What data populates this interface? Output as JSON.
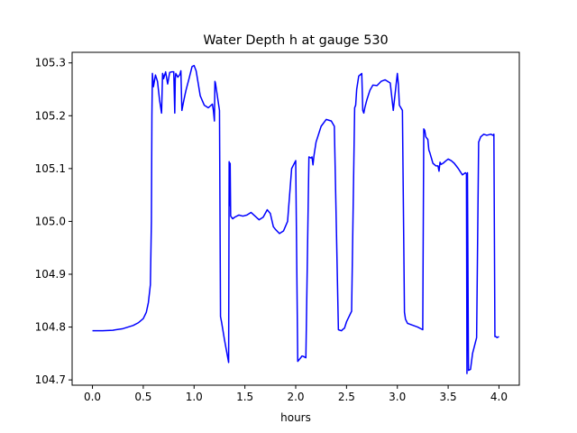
{
  "chart_data": {
    "type": "line",
    "title": "Water Depth h at gauge 530",
    "xlabel": "hours",
    "ylabel": "",
    "xlim": [
      -0.2,
      4.2
    ],
    "ylim": [
      104.69,
      105.32
    ],
    "xticks": [
      0.0,
      0.5,
      1.0,
      1.5,
      2.0,
      2.5,
      3.0,
      3.5,
      4.0
    ],
    "xtick_labels": [
      "0.0",
      "0.5",
      "1.0",
      "1.5",
      "2.0",
      "2.5",
      "3.0",
      "3.5",
      "4.0"
    ],
    "yticks": [
      104.7,
      104.8,
      104.9,
      105.0,
      105.1,
      105.2,
      105.3
    ],
    "ytick_labels": [
      "104.7",
      "104.8",
      "104.9",
      "105.0",
      "105.1",
      "105.2",
      "105.3"
    ],
    "grid": false,
    "series": [
      {
        "name": "",
        "color": "#0000ff",
        "x": [
          0.0,
          0.1,
          0.2,
          0.3,
          0.4,
          0.45,
          0.5,
          0.53,
          0.55,
          0.57,
          0.58,
          0.585,
          0.59,
          0.6,
          0.62,
          0.64,
          0.66,
          0.68,
          0.69,
          0.695,
          0.7,
          0.72,
          0.74,
          0.76,
          0.78,
          0.8,
          0.81,
          0.815,
          0.82,
          0.84,
          0.86,
          0.87,
          0.88,
          0.885,
          0.9,
          0.92,
          0.95,
          0.98,
          1.0,
          1.02,
          1.04,
          1.06,
          1.1,
          1.14,
          1.18,
          1.19,
          1.2,
          1.205,
          1.21,
          1.25,
          1.26,
          1.27,
          1.3,
          1.34,
          1.345,
          1.35,
          1.355,
          1.36,
          1.38,
          1.4,
          1.44,
          1.48,
          1.52,
          1.56,
          1.6,
          1.64,
          1.68,
          1.72,
          1.75,
          1.78,
          1.8,
          1.84,
          1.88,
          1.92,
          1.96,
          2.0,
          2.02,
          2.05,
          2.06,
          2.07,
          2.1,
          2.13,
          2.15,
          2.16,
          2.17,
          2.18,
          2.2,
          2.25,
          2.3,
          2.35,
          2.38,
          2.42,
          2.45,
          2.46,
          2.48,
          2.5,
          2.55,
          2.58,
          2.59,
          2.6,
          2.62,
          2.65,
          2.66,
          2.67,
          2.68,
          2.7,
          2.73,
          2.76,
          2.8,
          2.84,
          2.88,
          2.93,
          2.96,
          3.0,
          3.01,
          3.02,
          3.05,
          3.07,
          3.08,
          3.1,
          3.2,
          3.25,
          3.26,
          3.27,
          3.28,
          3.3,
          3.31,
          3.32,
          3.35,
          3.38,
          3.4,
          3.41,
          3.42,
          3.43,
          3.45,
          3.48,
          3.5,
          3.53,
          3.56,
          3.6,
          3.64,
          3.67,
          3.68,
          3.685,
          3.69,
          3.7,
          3.72,
          3.74,
          3.78,
          3.8,
          3.82,
          3.85,
          3.88,
          3.92,
          3.94,
          3.95,
          3.96,
          3.97,
          3.98,
          4.0
        ],
        "y": [
          104.793,
          104.793,
          104.794,
          104.797,
          104.803,
          104.808,
          104.816,
          104.828,
          104.846,
          104.88,
          105.0,
          105.2,
          105.28,
          105.255,
          105.277,
          105.265,
          105.23,
          105.205,
          105.28,
          105.277,
          105.27,
          105.283,
          105.26,
          105.282,
          105.283,
          105.283,
          105.205,
          105.27,
          105.28,
          105.273,
          105.278,
          105.285,
          105.21,
          105.215,
          105.23,
          105.248,
          105.27,
          105.293,
          105.295,
          105.285,
          105.262,
          105.238,
          105.22,
          105.215,
          105.222,
          105.21,
          105.19,
          105.265,
          105.262,
          105.21,
          104.82,
          104.81,
          104.775,
          104.733,
          105.113,
          105.03,
          105.11,
          105.01,
          105.005,
          105.008,
          105.012,
          105.01,
          105.012,
          105.017,
          105.01,
          105.003,
          105.008,
          105.022,
          105.015,
          104.99,
          104.985,
          104.977,
          104.982,
          105.0,
          105.1,
          105.115,
          104.735,
          104.742,
          104.745,
          104.745,
          104.742,
          105.122,
          105.12,
          105.122,
          105.107,
          105.125,
          105.15,
          105.18,
          105.193,
          105.19,
          105.18,
          104.795,
          104.793,
          104.795,
          104.798,
          104.81,
          104.83,
          105.215,
          105.22,
          105.25,
          105.275,
          105.28,
          105.21,
          105.205,
          105.215,
          105.23,
          105.248,
          105.258,
          105.257,
          105.265,
          105.268,
          105.262,
          105.21,
          105.28,
          105.26,
          105.22,
          105.21,
          104.828,
          104.815,
          104.807,
          104.8,
          104.795,
          105.175,
          105.172,
          105.16,
          105.155,
          105.135,
          105.13,
          105.11,
          105.105,
          105.105,
          105.095,
          105.112,
          105.108,
          105.11,
          105.115,
          105.118,
          105.115,
          105.11,
          105.1,
          105.088,
          105.092,
          105.09,
          104.712,
          105.092,
          104.718,
          104.72,
          104.75,
          104.78,
          105.15,
          105.16,
          105.165,
          105.163,
          105.165,
          105.163,
          105.165,
          104.782,
          104.782,
          104.78,
          104.782
        ]
      }
    ]
  }
}
